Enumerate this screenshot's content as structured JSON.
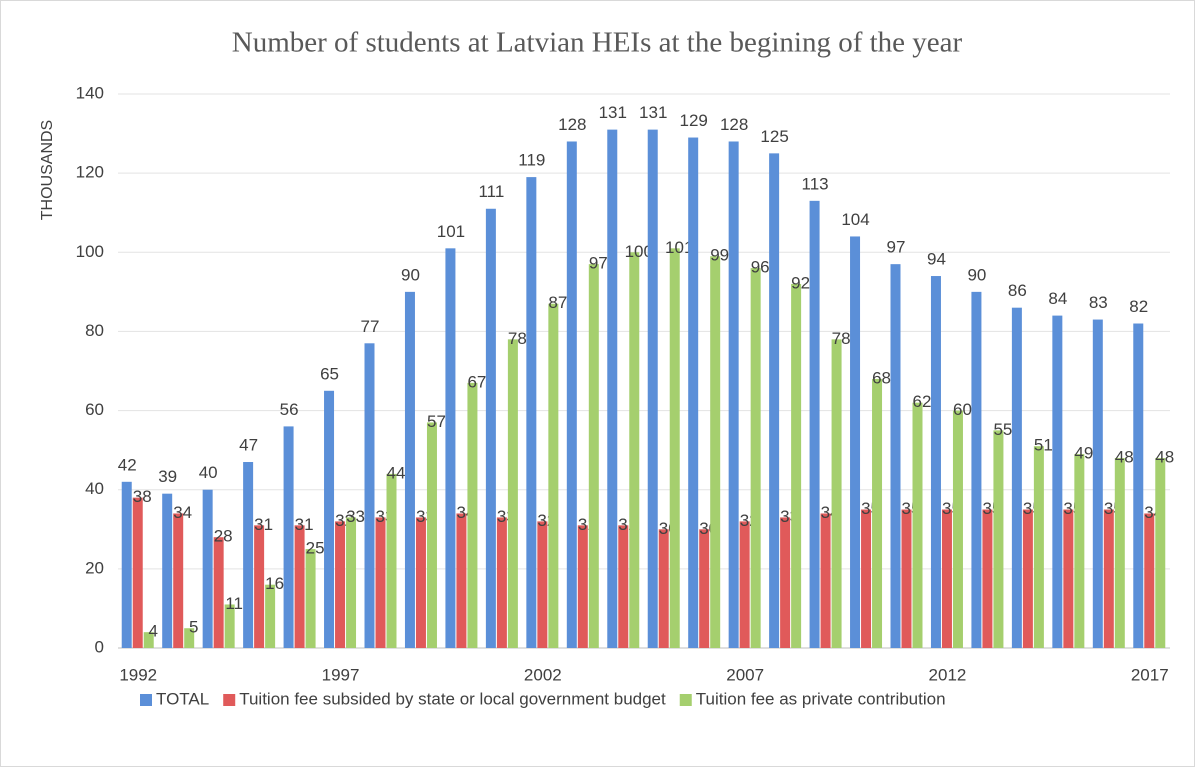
{
  "chart_data": {
    "type": "bar",
    "title": "Number of students at Latvian HEIs at the begining of the year",
    "y_label": "THOUSANDS",
    "categories": [
      "1992",
      null,
      null,
      null,
      null,
      "1997",
      null,
      null,
      null,
      null,
      "2002",
      null,
      null,
      null,
      null,
      "2007",
      null,
      null,
      null,
      null,
      "2012",
      null,
      null,
      null,
      null,
      "2017"
    ],
    "series": [
      {
        "name": "TOTAL",
        "color": "#5b8fd8",
        "values": [
          42,
          39,
          40,
          47,
          56,
          65,
          77,
          90,
          101,
          111,
          119,
          128,
          131,
          131,
          129,
          128,
          125,
          113,
          104,
          97,
          94,
          90,
          86,
          84,
          83,
          82
        ]
      },
      {
        "name": "Tuition fee subsided by state or local government budget",
        "color": "#e05a5a",
        "values": [
          38,
          34,
          28,
          31,
          31,
          32,
          33,
          33,
          34,
          33,
          32,
          31,
          31,
          30,
          30,
          32,
          33,
          34,
          35,
          35,
          35,
          35,
          35,
          35,
          35,
          34
        ]
      },
      {
        "name": "Tuition fee as private contribution",
        "color": "#a5cf6e",
        "values": [
          4,
          5,
          11,
          16,
          25,
          33,
          44,
          57,
          67,
          78,
          87,
          97,
          100,
          101,
          99,
          96,
          92,
          78,
          68,
          62,
          60,
          55,
          51,
          49,
          48,
          48
        ]
      }
    ],
    "ylim": [
      0,
      140
    ],
    "yticks": [
      0,
      20,
      40,
      60,
      80,
      100,
      120,
      140
    ],
    "grid": true,
    "legend": "bottom"
  }
}
